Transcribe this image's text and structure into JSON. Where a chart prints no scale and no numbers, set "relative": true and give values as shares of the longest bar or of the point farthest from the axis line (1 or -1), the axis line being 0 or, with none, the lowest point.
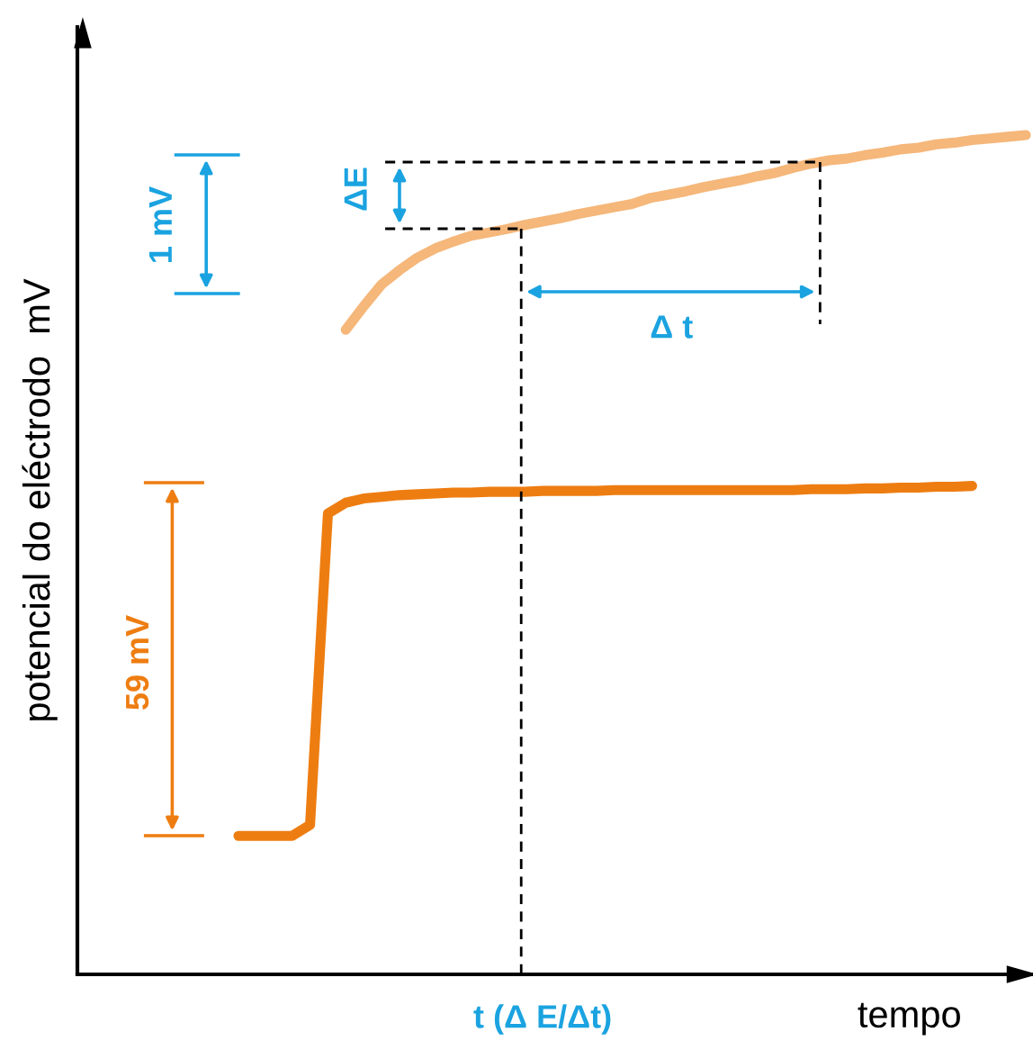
{
  "chart_data": {
    "type": "line",
    "relative": true,
    "xlabel": "tempo",
    "ylabel": "potencial do eléctrodo  mV",
    "categories": [
      null,
      null,
      null,
      null,
      null,
      null,
      null,
      null,
      null,
      null,
      null,
      null,
      null,
      null,
      null,
      null,
      null,
      null,
      null,
      null,
      null,
      null,
      null,
      null,
      null,
      null,
      null,
      null,
      null,
      null,
      null,
      null,
      null,
      null,
      null,
      null,
      null,
      null,
      null,
      null,
      null,
      null,
      null,
      null,
      null,
      null,
      null,
      null,
      null,
      null,
      null,
      null,
      null,
      null
    ],
    "series": [
      {
        "color": "#ee7d11",
        "values": [
          null,
          null,
          null,
          null,
          null,
          null,
          null,
          null,
          null,
          0.165,
          0.165,
          0.165,
          0.165,
          0.178,
          0.549,
          0.562,
          0.567,
          0.569,
          0.571,
          0.572,
          0.573,
          0.574,
          0.574,
          0.575,
          0.575,
          0.575,
          0.576,
          0.576,
          0.576,
          0.576,
          0.577,
          0.577,
          0.577,
          0.577,
          0.577,
          0.577,
          0.577,
          0.577,
          0.577,
          0.577,
          0.577,
          0.578,
          0.578,
          0.578,
          0.579,
          0.579,
          0.58,
          0.58,
          0.581,
          0.581,
          0.582,
          null,
          null,
          null
        ]
      },
      {
        "color": "#f5b77a",
        "values": [
          null,
          null,
          null,
          null,
          null,
          null,
          null,
          null,
          null,
          null,
          null,
          null,
          null,
          null,
          null,
          0.768,
          0.796,
          0.822,
          0.839,
          0.854,
          0.865,
          0.873,
          0.88,
          0.884,
          0.888,
          0.893,
          0.897,
          0.901,
          0.906,
          0.91,
          0.914,
          0.918,
          0.925,
          0.929,
          0.933,
          0.938,
          0.942,
          0.946,
          0.951,
          0.955,
          0.961,
          0.966,
          0.97,
          0.972,
          0.976,
          0.979,
          0.983,
          0.985,
          0.989,
          0.991,
          0.994,
          0.996,
          0.998,
          1.0
        ]
      }
    ],
    "annotations": [
      "1 mV",
      "ΔE",
      "Δ t",
      "59 mV",
      "t (Δ E/Δt)"
    ]
  }
}
